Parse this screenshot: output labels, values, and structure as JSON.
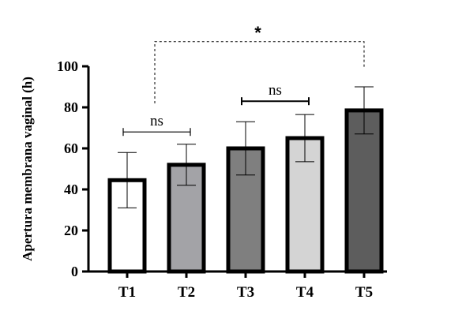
{
  "chart_data": {
    "type": "bar",
    "title": "",
    "xlabel": "",
    "ylabel": "Apertura membrana vaginal (h)",
    "ylim": [
      0,
      100
    ],
    "yticks": [
      0,
      20,
      40,
      60,
      80,
      100
    ],
    "categories": [
      "T1",
      "T2",
      "T3",
      "T4",
      "T5"
    ],
    "values": [
      44.5,
      52,
      60,
      65,
      78.5
    ],
    "error": [
      13.5,
      10,
      13,
      11.5,
      11.5
    ],
    "colors": [
      "#ffffff",
      "#a3a3a7",
      "#7f7f7f",
      "#d4d4d4",
      "#5d5d5d"
    ],
    "grid": false,
    "annotations": [
      {
        "from": "T1",
        "to": "T2",
        "label": "ns",
        "style": "solid",
        "y": 68
      },
      {
        "from": "T3",
        "to": "T4",
        "label": "ns",
        "style": "solid",
        "y": 83
      },
      {
        "from": "T1",
        "to": "T5",
        "label": "*",
        "style": "dashed",
        "y": 112
      }
    ]
  }
}
